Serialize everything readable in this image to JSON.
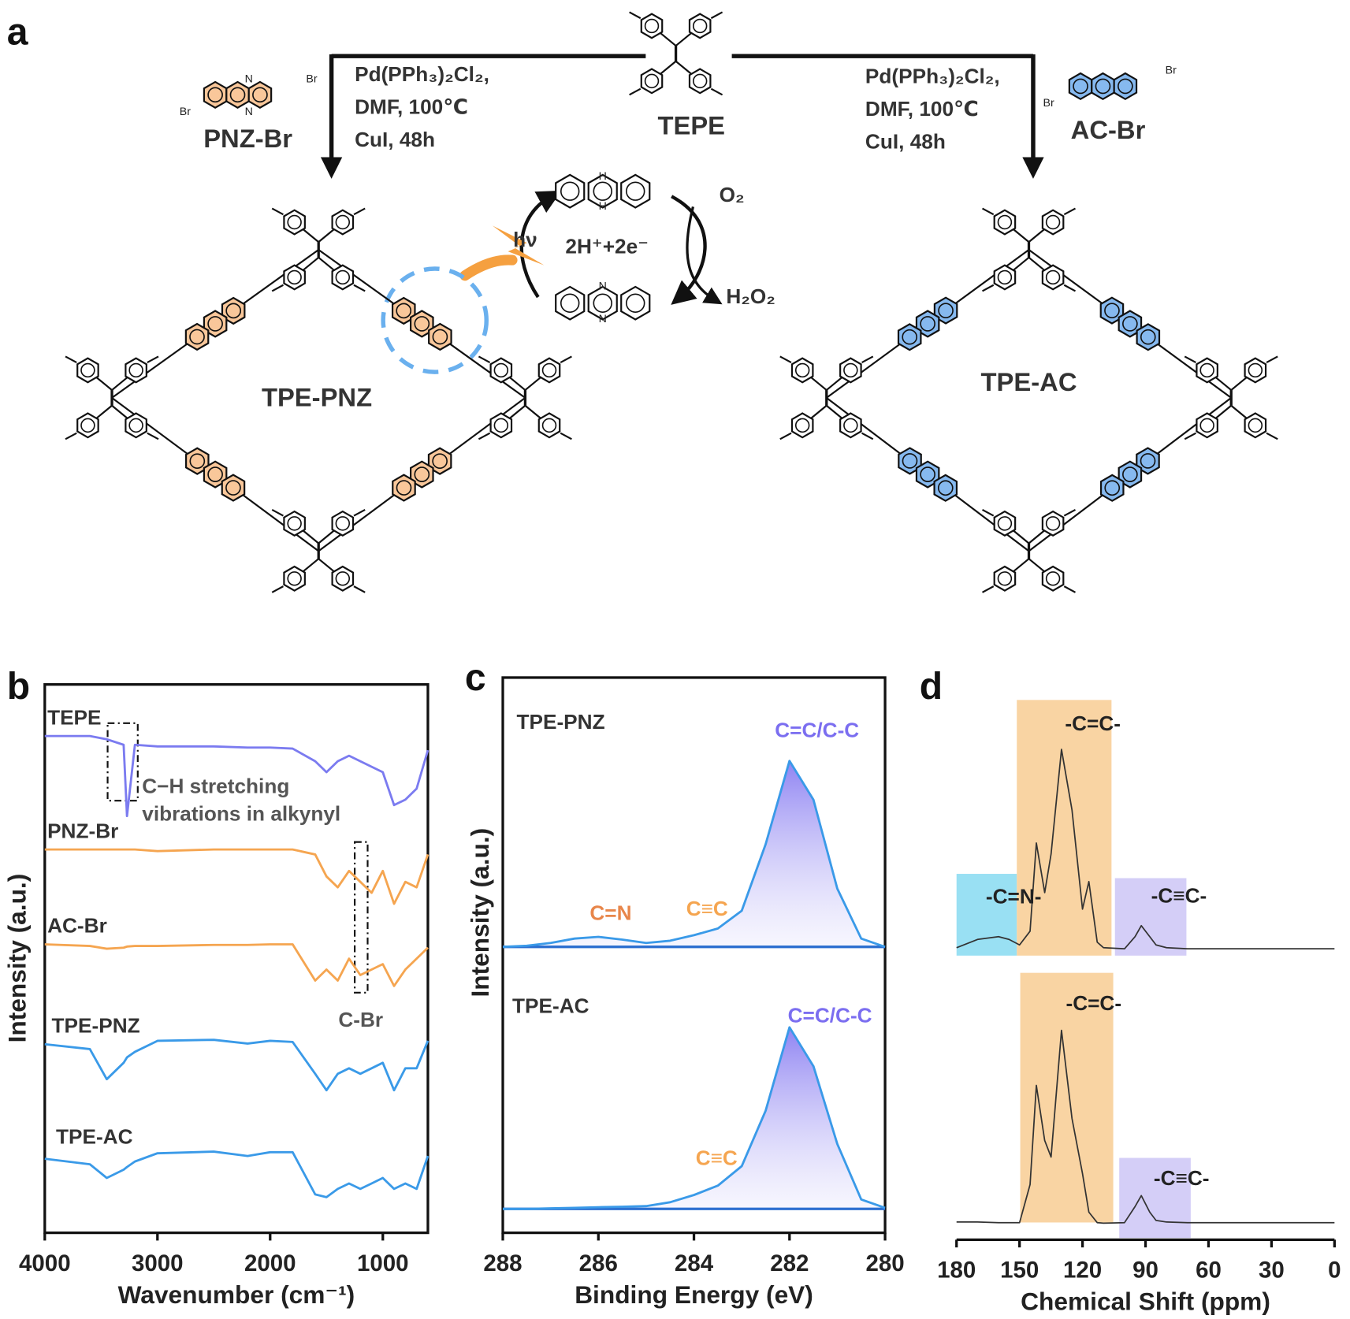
{
  "panel_a": {
    "letter": "a",
    "reactant_center": "TEPE",
    "reactant_left": "PNZ-Br",
    "reactant_right": "AC-Br",
    "conditions_left": [
      "Pd(PPh₃)₂Cl₂,",
      "DMF, 100℃",
      "CuI, 48h"
    ],
    "conditions_right": [
      "Pd(PPh₃)₂Cl₂,",
      "DMF, 100℃",
      "CuI, 48h"
    ],
    "product_left": "TPE-PNZ",
    "product_right": "TPE-AC",
    "light": "hν",
    "electrons": "2H⁺+2e⁻",
    "oxygen": "O₂",
    "peroxide": "H₂O₂",
    "atom_br": "Br",
    "atom_n": "N",
    "atom_h": "H"
  },
  "chart_data": [
    {
      "type": "line",
      "panel": "b",
      "frame": true,
      "xlabel": "Wavenumber (cm⁻¹)",
      "ylabel": "Intensity (a.u.)",
      "xlim": [
        4000,
        600
      ],
      "ylim": [
        0,
        100
      ],
      "xticks": [
        4000,
        3000,
        2000,
        1000
      ],
      "x": [
        4000,
        3600,
        3450,
        3300,
        3270,
        3200,
        3000,
        2500,
        2200,
        2000,
        1800,
        1600,
        1500,
        1400,
        1300,
        1200,
        1100,
        1000,
        900,
        800,
        700,
        600
      ],
      "series": [
        {
          "name": "TEPE",
          "color": "#7b7bf0",
          "values": [
            90.6,
            90.6,
            90,
            89,
            76,
            89,
            88.7,
            88.7,
            88.5,
            88.5,
            88.3,
            86,
            84,
            86,
            87,
            86,
            85,
            84,
            78,
            79,
            81,
            88
          ]
        },
        {
          "name": "PNZ-Br",
          "color": "#f5a550",
          "values": [
            69.9,
            69.9,
            69.9,
            69.9,
            69.9,
            69.9,
            69.6,
            69.9,
            69.9,
            69.9,
            69.9,
            69,
            65,
            63,
            66,
            64,
            62,
            66,
            60,
            64,
            63,
            69
          ]
        },
        {
          "name": "AC-Br",
          "color": "#f5a550",
          "values": [
            52.6,
            52.3,
            51.8,
            52,
            52.2,
            52.3,
            52.3,
            52.5,
            52.5,
            52.6,
            52.6,
            46,
            48,
            46,
            50,
            47,
            48,
            49,
            45,
            48,
            50,
            52
          ]
        },
        {
          "name": "TPE-PNZ",
          "color": "#3a9ae8",
          "values": [
            34.4,
            33.5,
            28,
            31,
            32,
            33,
            35,
            35.2,
            34.5,
            35,
            34.8,
            29,
            26,
            29,
            30,
            29,
            30,
            31,
            26,
            30,
            30,
            35
          ]
        },
        {
          "name": "TPE-AC",
          "color": "#3a9ae8",
          "values": [
            13.5,
            12.5,
            10,
            11.5,
            12,
            13,
            14.5,
            14.8,
            14,
            14.7,
            14.7,
            7,
            6.5,
            8,
            9,
            8,
            9,
            10,
            8,
            9,
            8,
            14
          ]
        }
      ],
      "annotations": [
        "C−H stretching",
        "vibrations in alkynyl",
        "C-Br"
      ]
    },
    {
      "type": "line",
      "panel": "c",
      "frame": true,
      "xlabel": "Binding Energy (eV)",
      "ylabel": "Intensity (a.u.)",
      "xlim": [
        288,
        280
      ],
      "ylim": [
        0,
        100
      ],
      "xticks": [
        288,
        286,
        284,
        282,
        280
      ],
      "x": [
        288,
        287.5,
        287,
        286.5,
        286,
        285.5,
        285,
        284.5,
        284,
        283.5,
        283,
        282.5,
        282,
        281.5,
        281,
        280.5,
        280
      ],
      "series": [
        {
          "name": "TPE-PNZ",
          "color": "#3a9ae8",
          "values": [
            51.5,
            51.7,
            52.2,
            53,
            53.3,
            52.8,
            52.2,
            52.6,
            53.6,
            54.8,
            58,
            70,
            85,
            78,
            62,
            53,
            51.5
          ]
        },
        {
          "name": "TPE-AC",
          "color": "#3a9ae8",
          "values": [
            4.3,
            4.3,
            4.4,
            4.5,
            4.6,
            4.7,
            4.8,
            5.5,
            6.8,
            8.5,
            12,
            22,
            37,
            30,
            16,
            6,
            4.5
          ]
        }
      ],
      "annotations": [
        "C=N",
        "C≡C",
        "C=C/C-C",
        "C≡C",
        "C=C/C-C"
      ]
    },
    {
      "type": "line",
      "panel": "d",
      "frame": false,
      "xlabel": "Chemical Shift (ppm)",
      "xlim": [
        180,
        0
      ],
      "ylim": [
        0,
        100
      ],
      "xticks": [
        180,
        150,
        120,
        90,
        60,
        30,
        0
      ],
      "x": [
        180,
        170,
        160,
        155,
        150,
        145,
        142,
        138,
        135,
        130,
        125,
        120,
        117,
        113,
        110,
        100,
        95,
        92,
        88,
        85,
        80,
        70,
        50,
        30,
        10,
        0
      ],
      "series": [
        {
          "color": "#333333",
          "values": [
            53,
            54.5,
            55,
            54.5,
            53.5,
            56,
            72,
            63,
            70,
            89,
            78,
            60,
            65,
            54,
            53,
            52.8,
            55,
            57,
            55,
            53.5,
            53,
            52.8,
            52.8,
            52.8,
            52.8,
            52.8
          ]
        },
        {
          "color": "#333333",
          "values": [
            3.2,
            3.2,
            3.1,
            3.1,
            3.1,
            10,
            28,
            18,
            15,
            38,
            22,
            12,
            5,
            3.1,
            3,
            3.1,
            6,
            8,
            5,
            3.5,
            3.2,
            3.1,
            3.1,
            3.1,
            3.1,
            3.1
          ]
        }
      ],
      "annotations": [
        "-C=N-",
        "-C=C-",
        "-C≡C-",
        "-C=C-",
        "-C≡C-"
      ]
    }
  ]
}
